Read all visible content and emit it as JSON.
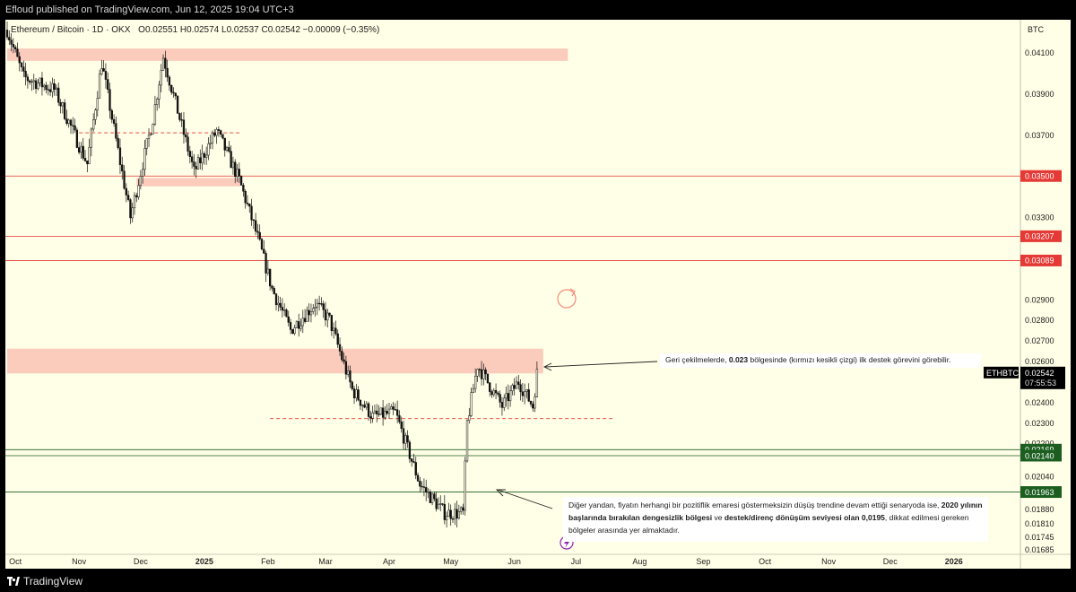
{
  "header": {
    "published": "Efloud published on TradingView.com, Jun 12, 2025 19:04 UTC+3",
    "symbol_line": "Ethereum / Bitcoin · 1D · OKX",
    "ohlc": "O0.02551  H0.02574  L0.02537  C0.02542  −0.00009 (−0.35%)",
    "currency": "BTC"
  },
  "footer": {
    "brand": "TradingView"
  },
  "colors": {
    "background": "#fffee6",
    "zone_fill": "#f8a8a0",
    "red_line": "#e53935",
    "green_line": "#1b5e20",
    "candle": "#111111",
    "price_tag_bg": "#000000"
  },
  "annotations": {
    "note1": {
      "pre": "Geri çekilmelerde, ",
      "bold": "0.023",
      "post": " bölgesinde (kırmızı kesikli çizgi) ilk destek görevini görebilir."
    },
    "note2": {
      "t1": "Diğer yandan, fiyatın herhangi bir pozitiflik emaresi göstermeksizin düşüş trendine devam ettiği senaryoda ise, ",
      "b1": "2020 yılının başlarında bırakılan dengesizlik bölgesi",
      "t2": " ve ",
      "b2": "destek/direnç dönüşüm seviyesi olan 0,0195",
      "t3": ", dikkat edilmesi gereken bölgeler arasında yer almaktadır."
    }
  },
  "chart_data": {
    "type": "candlestick",
    "symbol": "ETHBTC",
    "x_tick_labels": [
      "Oct",
      "Nov",
      "Dec",
      "2025",
      "Feb",
      "Mar",
      "Apr",
      "May",
      "Jun",
      "Jul",
      "Aug",
      "Sep",
      "Oct",
      "Nov",
      "Dec",
      "2026"
    ],
    "y_tick_labels": [
      "0.04100",
      "0.03900",
      "0.03700",
      "0.03300",
      "0.02900",
      "0.02800",
      "0.02700",
      "0.02600",
      "0.02400",
      "0.02300",
      "0.02200",
      "0.02040",
      "0.01880",
      "0.01810",
      "0.01745",
      "0.01685"
    ],
    "ylim": [
      0.0166,
      0.0426
    ],
    "horizontal_levels": [
      {
        "value": 0.035,
        "label": "0.03500",
        "color": "red"
      },
      {
        "value": 0.03207,
        "label": "0.03207",
        "color": "red"
      },
      {
        "value": 0.03089,
        "label": "0.03089",
        "color": "red"
      },
      {
        "value": 0.02169,
        "label": "0.02169",
        "color": "green"
      },
      {
        "value": 0.0214,
        "label": "0.02140",
        "color": "green"
      },
      {
        "value": 0.01963,
        "label": "0.01963",
        "color": "green"
      }
    ],
    "zones": [
      {
        "from": "2024-09-27",
        "to": "2025-06-27",
        "low": 0.0406,
        "high": 0.0412
      },
      {
        "from": "2024-11-29",
        "to": "2025-01-19",
        "low": 0.0345,
        "high": 0.0349
      },
      {
        "from": "2024-09-27",
        "to": "2025-06-15",
        "low": 0.0254,
        "high": 0.0266
      }
    ],
    "dashed_levels": [
      {
        "value": 0.0371,
        "from": "2024-11-01",
        "to": "2025-01-19"
      },
      {
        "value": 0.0232,
        "from": "2025-02-02",
        "to": "2025-07-19"
      }
    ],
    "last_price": {
      "label": "ETHBTC",
      "value": "0.02542",
      "countdown": "07:55:53"
    },
    "key_prices": [
      {
        "date": "2024-09-27",
        "close": 0.0421
      },
      {
        "date": "2024-10-05",
        "close": 0.0398
      },
      {
        "date": "2024-10-20",
        "close": 0.0392
      },
      {
        "date": "2024-11-05",
        "close": 0.0356
      },
      {
        "date": "2024-11-12",
        "close": 0.0405
      },
      {
        "date": "2024-11-26",
        "close": 0.033
      },
      {
        "date": "2024-12-07",
        "close": 0.0378
      },
      {
        "date": "2024-12-12",
        "close": 0.0408
      },
      {
        "date": "2024-12-20",
        "close": 0.0378
      },
      {
        "date": "2024-12-27",
        "close": 0.0352
      },
      {
        "date": "2025-01-07",
        "close": 0.0372
      },
      {
        "date": "2025-01-18",
        "close": 0.0348
      },
      {
        "date": "2025-01-27",
        "close": 0.032
      },
      {
        "date": "2025-02-03",
        "close": 0.0295
      },
      {
        "date": "2025-02-12",
        "close": 0.0275
      },
      {
        "date": "2025-02-24",
        "close": 0.0288
      },
      {
        "date": "2025-03-03",
        "close": 0.028
      },
      {
        "date": "2025-03-14",
        "close": 0.0246
      },
      {
        "date": "2025-03-24",
        "close": 0.0233
      },
      {
        "date": "2025-04-04",
        "close": 0.0235
      },
      {
        "date": "2025-04-16",
        "close": 0.02
      },
      {
        "date": "2025-04-28",
        "close": 0.0186
      },
      {
        "date": "2025-05-07",
        "close": 0.0186
      },
      {
        "date": "2025-05-09",
        "close": 0.023
      },
      {
        "date": "2025-05-14",
        "close": 0.0258
      },
      {
        "date": "2025-05-26",
        "close": 0.0238
      },
      {
        "date": "2025-06-03",
        "close": 0.025
      },
      {
        "date": "2025-06-10",
        "close": 0.0238
      },
      {
        "date": "2025-06-12",
        "close": 0.0254
      }
    ]
  }
}
